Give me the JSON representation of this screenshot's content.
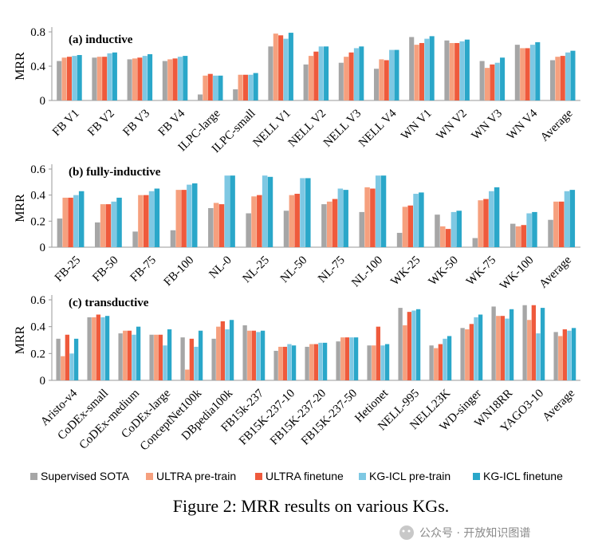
{
  "legend": [
    {
      "name": "Supervised SOTA",
      "color": "#a6a6a6"
    },
    {
      "name": "ULTRA pre-train",
      "color": "#f6a07e"
    },
    {
      "name": "ULTRA finetune",
      "color": "#ef5a3c"
    },
    {
      "name": "KG-ICL pre-train",
      "color": "#7ec8e3"
    },
    {
      "name": "KG-ICL finetune",
      "color": "#2aa7c9"
    }
  ],
  "caption": "Figure 2: MRR results on various KGs.",
  "watermark": "公众号 · 开放知识图谱",
  "chart_data": [
    {
      "type": "bar",
      "title": "(a) inductive",
      "ylabel": "MRR",
      "ylim": [
        0,
        0.8
      ],
      "yticks": [
        "0",
        "0.4",
        "0.8"
      ],
      "categories": [
        "FB V1",
        "FB V2",
        "FB V3",
        "FB V4",
        "ILPC-large",
        "ILPC-small",
        "NELL V1",
        "NELL V2",
        "NELL V3",
        "NELL V4",
        "WN V1",
        "WN V2",
        "WN V3",
        "WN V4",
        "Average"
      ],
      "series": [
        {
          "name": "Supervised SOTA",
          "values": [
            0.46,
            0.5,
            0.48,
            0.46,
            0.07,
            0.13,
            0.63,
            0.42,
            0.44,
            0.37,
            0.74,
            0.7,
            0.46,
            0.65,
            0.47
          ]
        },
        {
          "name": "ULTRA pre-train",
          "values": [
            0.5,
            0.51,
            0.49,
            0.48,
            0.29,
            0.3,
            0.78,
            0.52,
            0.51,
            0.48,
            0.65,
            0.67,
            0.38,
            0.61,
            0.51
          ]
        },
        {
          "name": "ULTRA finetune",
          "values": [
            0.51,
            0.51,
            0.5,
            0.49,
            0.31,
            0.3,
            0.76,
            0.57,
            0.56,
            0.47,
            0.67,
            0.67,
            0.42,
            0.61,
            0.52
          ]
        },
        {
          "name": "KG-ICL pre-train",
          "values": [
            0.52,
            0.55,
            0.52,
            0.51,
            0.29,
            0.3,
            0.72,
            0.63,
            0.61,
            0.59,
            0.72,
            0.69,
            0.44,
            0.65,
            0.56
          ]
        },
        {
          "name": "KG-ICL finetune",
          "values": [
            0.53,
            0.56,
            0.54,
            0.52,
            0.29,
            0.32,
            0.79,
            0.63,
            0.63,
            0.59,
            0.75,
            0.71,
            0.5,
            0.68,
            0.58
          ]
        }
      ]
    },
    {
      "type": "bar",
      "title": "(b) fully-inductive",
      "ylabel": "MRR",
      "ylim": [
        0,
        0.6
      ],
      "yticks": [
        "0",
        "0.2",
        "0.4",
        "0.6"
      ],
      "categories": [
        "FB-25",
        "FB-50",
        "FB-75",
        "FB-100",
        "NL-0",
        "NL-25",
        "NL-50",
        "NL-75",
        "NL-100",
        "WK-25",
        "WK-50",
        "WK-75",
        "WK-100",
        "Average"
      ],
      "series": [
        {
          "name": "Supervised SOTA",
          "values": [
            0.22,
            0.19,
            0.12,
            0.13,
            0.3,
            0.26,
            0.28,
            0.33,
            0.27,
            0.11,
            0.25,
            0.07,
            0.18,
            0.21
          ]
        },
        {
          "name": "ULTRA pre-train",
          "values": [
            0.38,
            0.33,
            0.4,
            0.44,
            0.34,
            0.39,
            0.4,
            0.35,
            0.46,
            0.31,
            0.16,
            0.36,
            0.16,
            0.35
          ]
        },
        {
          "name": "ULTRA finetune",
          "values": [
            0.38,
            0.33,
            0.4,
            0.44,
            0.33,
            0.4,
            0.41,
            0.37,
            0.45,
            0.32,
            0.14,
            0.37,
            0.17,
            0.35
          ]
        },
        {
          "name": "KG-ICL pre-train",
          "values": [
            0.4,
            0.35,
            0.43,
            0.48,
            0.55,
            0.55,
            0.53,
            0.45,
            0.55,
            0.41,
            0.27,
            0.43,
            0.26,
            0.43
          ]
        },
        {
          "name": "KG-ICL finetune",
          "values": [
            0.43,
            0.38,
            0.45,
            0.49,
            0.55,
            0.54,
            0.53,
            0.44,
            0.55,
            0.42,
            0.28,
            0.46,
            0.27,
            0.44
          ]
        }
      ]
    },
    {
      "type": "bar",
      "title": "(c) transductive",
      "ylabel": "MRR",
      "ylim": [
        0,
        0.6
      ],
      "yticks": [
        "0",
        "0.2",
        "0.4",
        "0.6"
      ],
      "categories": [
        "Aristo-v4",
        "CoDEx-small",
        "CoDEx-medium",
        "CoDEx-large",
        "ConceptNet100k",
        "DBpedia100k",
        "FB15k-237",
        "FB15K-237-10",
        "FB15K-237-20",
        "FB15K-237-50",
        "Hetionet",
        "NELL-995",
        "NELL23K",
        "WD-singer",
        "WN18RR",
        "YAGO3-10",
        "Average"
      ],
      "series": [
        {
          "name": "Supervised SOTA",
          "values": [
            0.31,
            0.47,
            0.35,
            0.34,
            0.32,
            0.31,
            0.41,
            0.22,
            0.25,
            0.29,
            0.26,
            0.54,
            0.26,
            0.39,
            0.55,
            0.56,
            0.36
          ]
        },
        {
          "name": "ULTRA pre-train",
          "values": [
            0.18,
            0.47,
            0.37,
            0.34,
            0.08,
            0.4,
            0.37,
            0.25,
            0.27,
            0.32,
            0.26,
            0.41,
            0.24,
            0.38,
            0.48,
            0.45,
            0.33
          ]
        },
        {
          "name": "ULTRA finetune",
          "values": [
            0.34,
            0.49,
            0.37,
            0.34,
            0.31,
            0.44,
            0.37,
            0.25,
            0.27,
            0.32,
            0.4,
            0.51,
            0.27,
            0.42,
            0.48,
            0.56,
            0.38
          ]
        },
        {
          "name": "KG-ICL pre-train",
          "values": [
            0.2,
            0.47,
            0.34,
            0.26,
            0.25,
            0.38,
            0.36,
            0.27,
            0.28,
            0.32,
            0.26,
            0.52,
            0.31,
            0.47,
            0.46,
            0.35,
            0.37
          ]
        },
        {
          "name": "KG-ICL finetune",
          "values": [
            0.31,
            0.48,
            0.4,
            0.38,
            0.37,
            0.45,
            0.37,
            0.26,
            0.28,
            0.32,
            0.27,
            0.53,
            0.33,
            0.49,
            0.53,
            0.54,
            0.39
          ]
        }
      ]
    }
  ]
}
